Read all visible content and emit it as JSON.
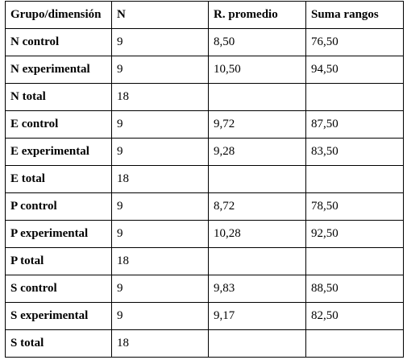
{
  "table": {
    "headers": [
      "Grupo/dimensión",
      "N",
      "R. promedio",
      "Suma  rangos"
    ],
    "rows": [
      [
        "N control",
        "9",
        "8,50",
        "76,50"
      ],
      [
        "N experimental",
        "9",
        "10,50",
        "94,50"
      ],
      [
        "N total",
        "18",
        "",
        ""
      ],
      [
        "E control",
        "9",
        "9,72",
        "87,50"
      ],
      [
        "E experimental",
        "9",
        "9,28",
        "83,50"
      ],
      [
        "E total",
        "18",
        "",
        ""
      ],
      [
        "P control",
        "9",
        "8,72",
        "78,50"
      ],
      [
        "P experimental",
        "9",
        "10,28",
        "92,50"
      ],
      [
        "P total",
        "18",
        "",
        ""
      ],
      [
        "S control",
        "9",
        "9,83",
        "88,50"
      ],
      [
        "S experimental",
        "9",
        "9,17",
        "82,50"
      ],
      [
        "S total",
        "18",
        "",
        ""
      ]
    ]
  }
}
